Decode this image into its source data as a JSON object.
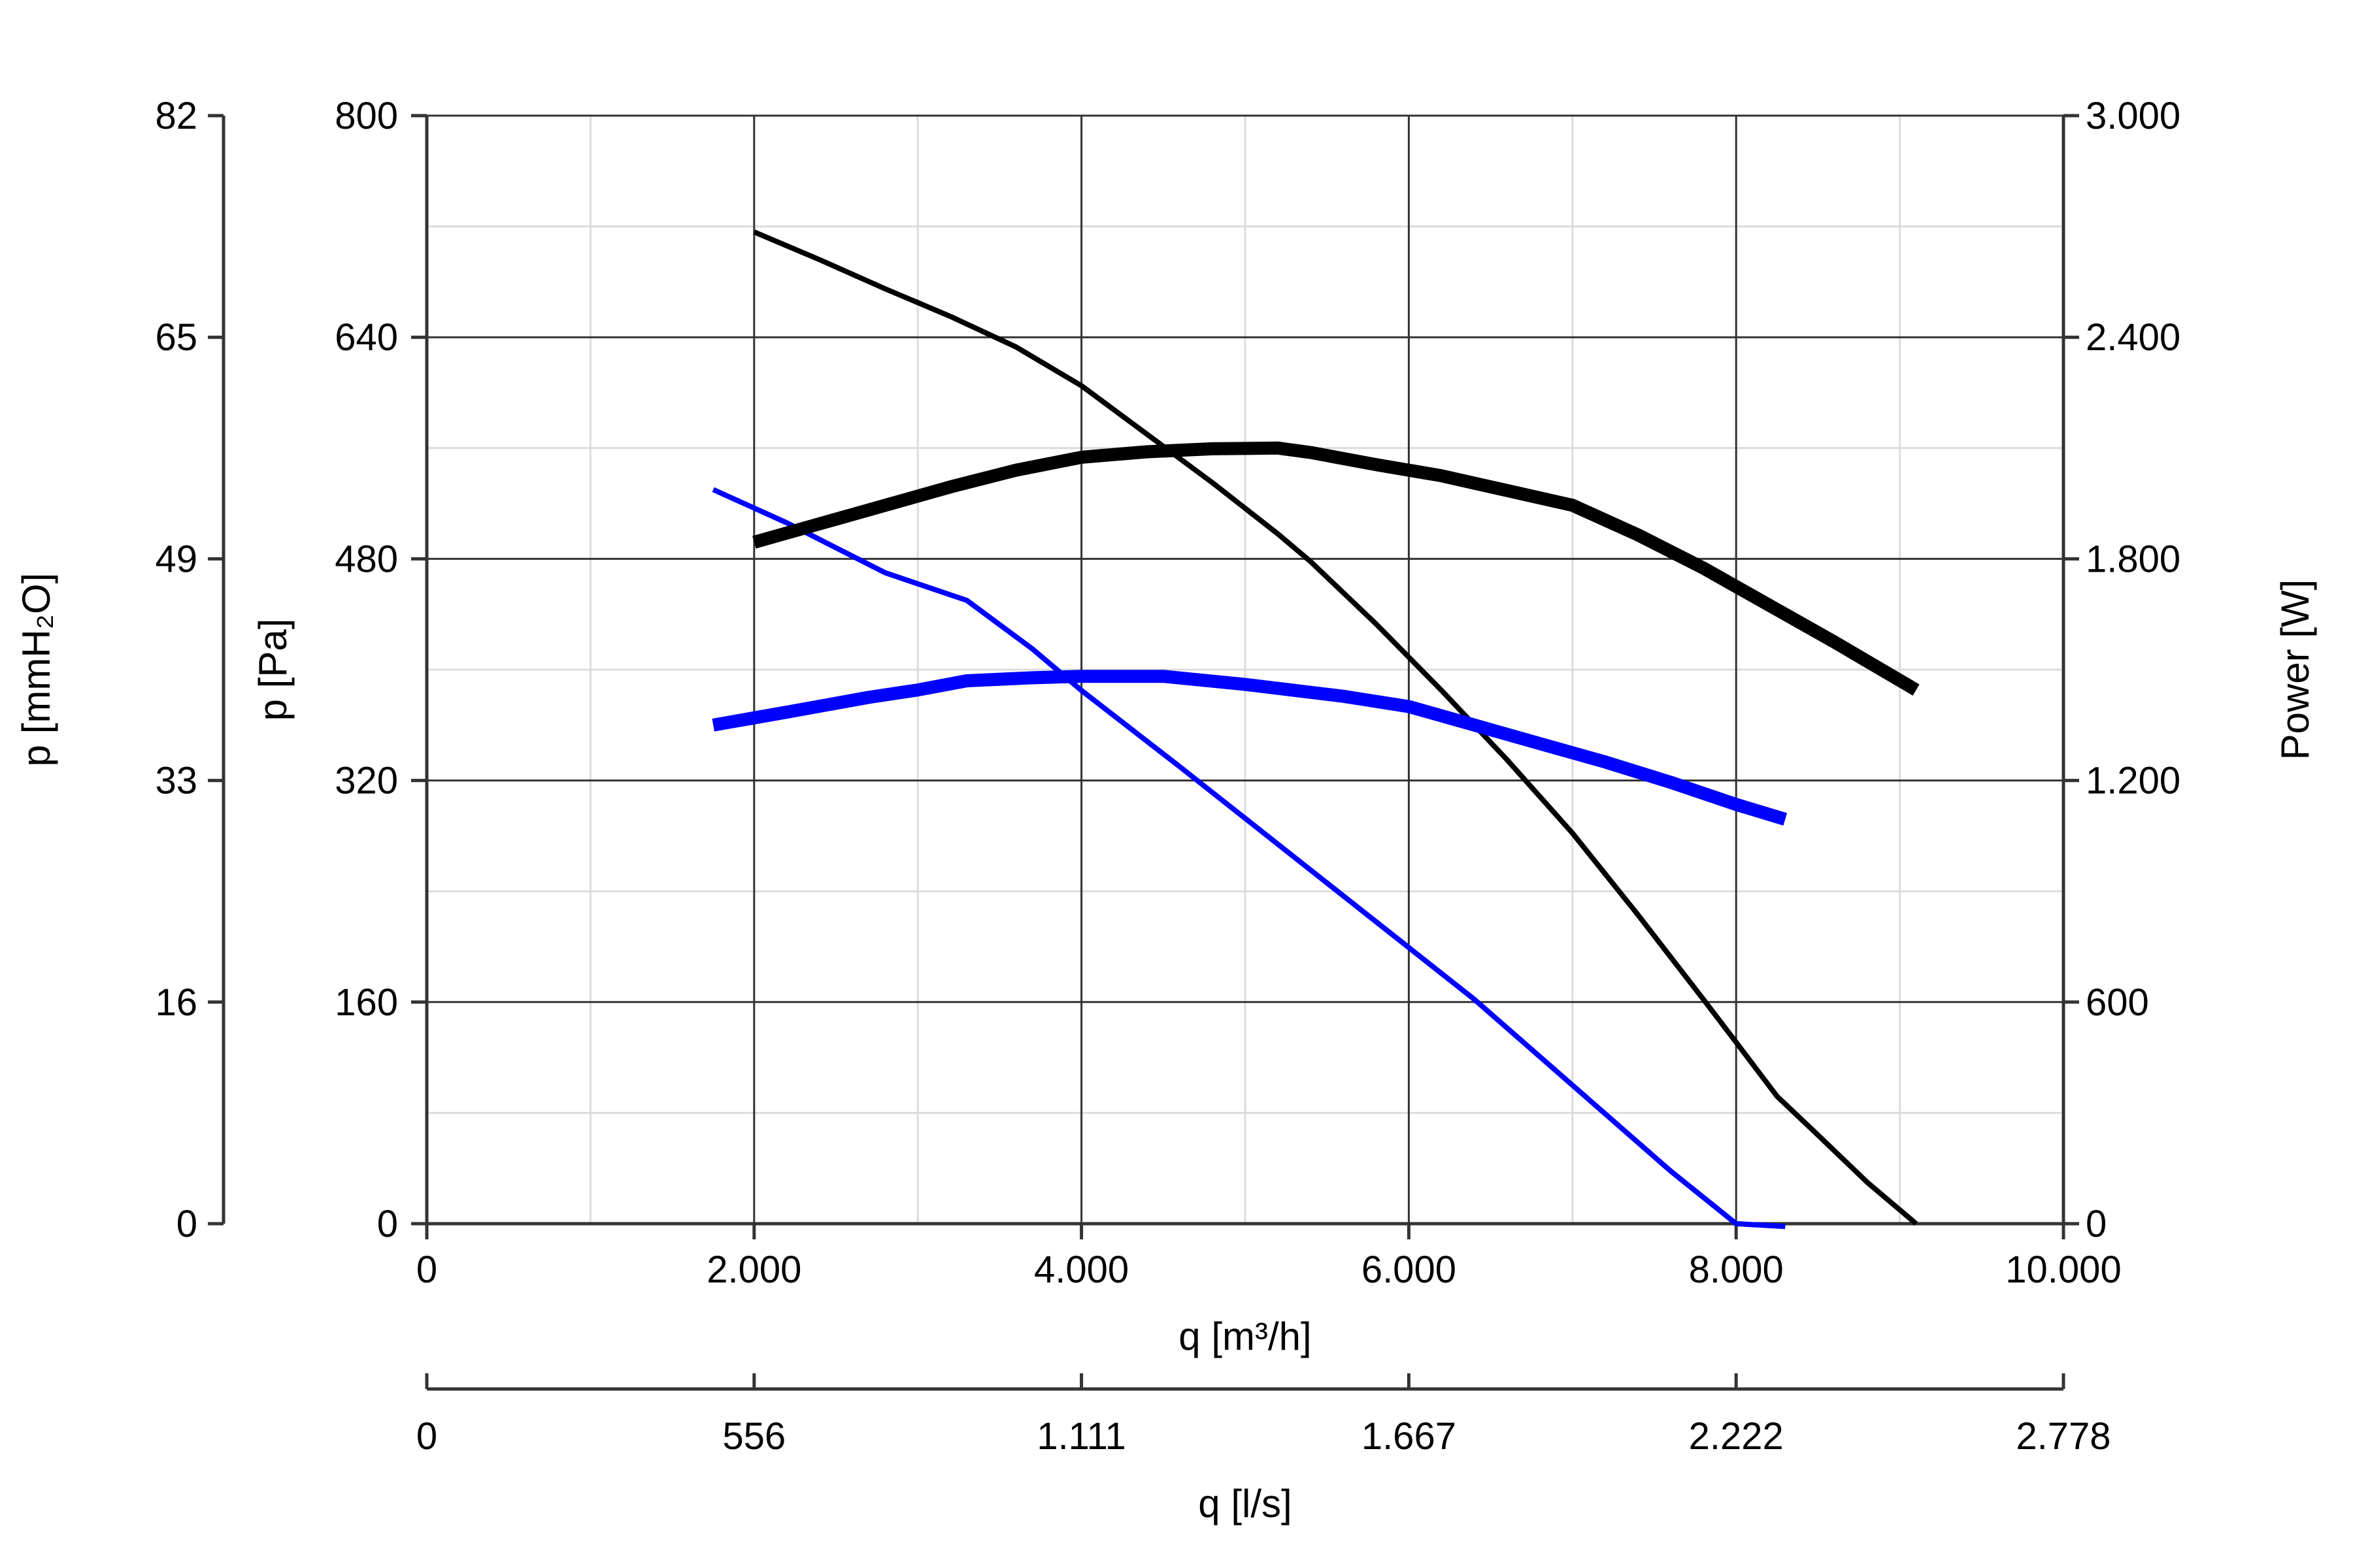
{
  "chart_data": {
    "type": "line",
    "title": "",
    "xlabel": "q [m³/h]",
    "xlim": [
      0,
      10000
    ],
    "x_ticks": [
      "0",
      "2.000",
      "4.000",
      "6.000",
      "8.000",
      "10.000"
    ],
    "x2label": "q [l/s]",
    "x2_ticks": [
      "0",
      "556",
      "1.111",
      "1.667",
      "2.222",
      "2.778"
    ],
    "ylabel": "p [Pa]",
    "ylim": [
      0,
      800
    ],
    "y_ticks": [
      "0",
      "160",
      "320",
      "480",
      "640",
      "800"
    ],
    "y2label": "p [mmH₂O]",
    "y2_ticks": [
      "0",
      "16",
      "33",
      "49",
      "65",
      "82"
    ],
    "y3label": "Power [W]",
    "y3lim": [
      0,
      3000
    ],
    "y3_ticks": [
      "0",
      "600",
      "1.200",
      "1.800",
      "2.400",
      "3.000"
    ],
    "grid": true,
    "legend": "none",
    "series": [
      {
        "axis": "pressure",
        "color": "#000000",
        "weight": "thin",
        "x": [
          2000,
          2400,
          2800,
          3200,
          3600,
          4000,
          4400,
          4800,
          5200,
          5400,
          5800,
          6200,
          6600,
          7000,
          7400,
          7800,
          8000,
          8250,
          8500,
          8800,
          9100
        ],
        "y": [
          716,
          696,
          675,
          655,
          633,
          605,
          570,
          535,
          498,
          478,
          433,
          385,
          335,
          282,
          223,
          162,
          131,
          92,
          64,
          30,
          0
        ]
      },
      {
        "axis": "pressure",
        "color": "#0000ff",
        "weight": "thin",
        "x": [
          1750,
          2200,
          2800,
          3300,
          3700,
          4000,
          4600,
          5200,
          5800,
          6400,
          7000,
          7600,
          8000,
          8300
        ],
        "y": [
          530,
          506,
          470,
          450,
          415,
          385,
          330,
          274,
          218,
          162,
          100,
          38,
          0,
          -2
        ]
      },
      {
        "axis": "power",
        "color": "#000000",
        "weight": "thick",
        "x": [
          2000,
          2600,
          3200,
          3600,
          4000,
          4400,
          4800,
          5200,
          5400,
          5800,
          6200,
          6600,
          7000,
          7400,
          7800,
          8200,
          8600,
          9100
        ],
        "y": [
          1845,
          1920,
          1995,
          2040,
          2075,
          2090,
          2098,
          2100,
          2088,
          2055,
          2025,
          1985,
          1945,
          1865,
          1775,
          1675,
          1575,
          1445
        ]
      },
      {
        "axis": "power",
        "color": "#0000ff",
        "weight": "thick",
        "x": [
          1750,
          2200,
          2700,
          3000,
          3300,
          3700,
          4000,
          4500,
          5000,
          5600,
          6000,
          6400,
          6800,
          7200,
          7600,
          8000,
          8300
        ],
        "y": [
          1350,
          1385,
          1425,
          1445,
          1470,
          1478,
          1482,
          1482,
          1460,
          1428,
          1400,
          1350,
          1300,
          1250,
          1195,
          1135,
          1095
        ]
      }
    ]
  }
}
